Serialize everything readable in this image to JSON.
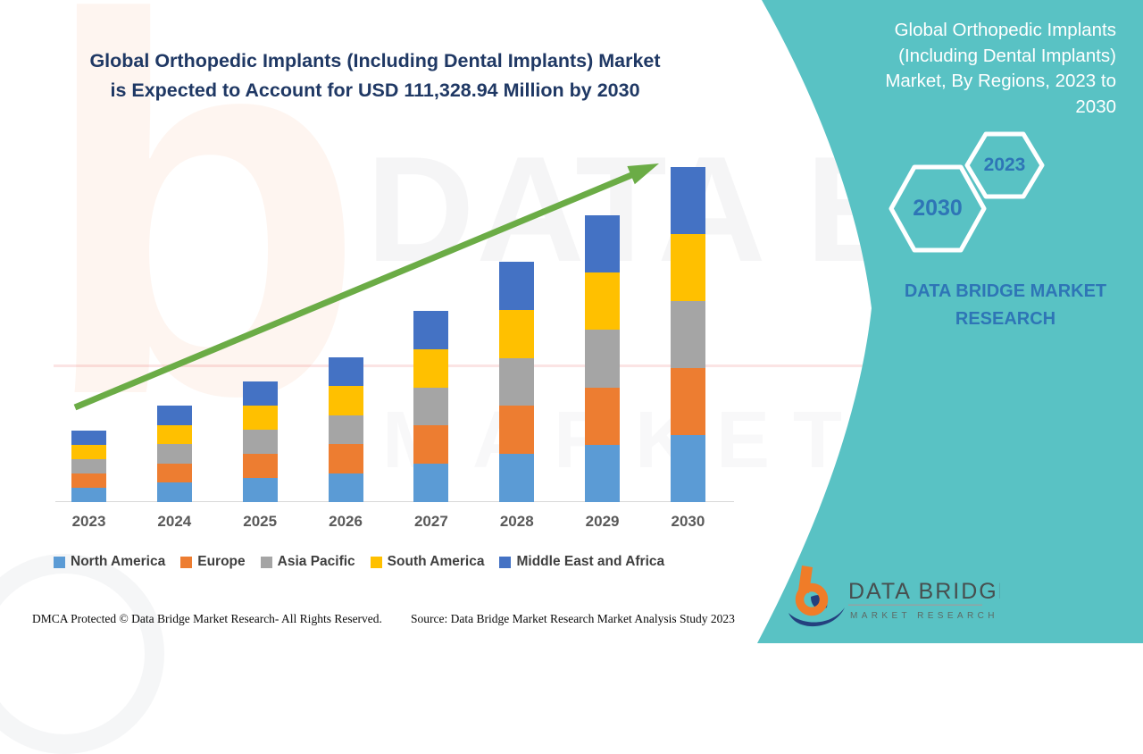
{
  "header": {
    "title_lines": [
      "Global Orthopedic Implants (Including Dental Implants) Market",
      "is Expected to Account for USD 111,328.94 Million by 2030"
    ],
    "title_color": "#1F3864"
  },
  "chart_data": {
    "type": "bar",
    "stacked": true,
    "title": "Global Orthopedic Implants (Including Dental Implants) Market is Expected to Account for USD 111,328.94 Million by 2030",
    "categories": [
      "2023",
      "2024",
      "2025",
      "2026",
      "2027",
      "2028",
      "2029",
      "2030"
    ],
    "series": [
      {
        "name": "North America",
        "color": "#5B9BD5",
        "values": [
          16,
          21.6,
          27,
          32.4,
          42.8,
          53.8,
          64.2,
          75
        ]
      },
      {
        "name": "Europe",
        "color": "#ED7D31",
        "values": [
          16,
          21.6,
          27,
          32.4,
          42.8,
          53.8,
          64.2,
          75
        ]
      },
      {
        "name": "Asia Pacific",
        "color": "#A5A5A5",
        "values": [
          16,
          21.6,
          27,
          32.4,
          42.8,
          53.8,
          64.2,
          75
        ]
      },
      {
        "name": "South America",
        "color": "#FFC000",
        "values": [
          16,
          21.6,
          27,
          32.4,
          42.8,
          53.8,
          64.2,
          75
        ]
      },
      {
        "name": "Middle East and Africa",
        "color": "#4472C4",
        "values": [
          16,
          21.6,
          27,
          32.4,
          42.8,
          53.8,
          64.2,
          75
        ]
      }
    ],
    "totals": [
      80,
      108,
      135,
      162,
      214,
      269,
      321,
      375
    ],
    "units": "relative bar height (no numeric value axis is shown in the figure)",
    "xlabel": "",
    "ylabel": "",
    "grid": false,
    "legend_position": "bottom",
    "trend_arrow_color": "#6BAC46"
  },
  "panel": {
    "background_color": "#59C2C4",
    "title_lines": [
      "Global Orthopedic Implants",
      "(Including Dental Implants)",
      "Market, By Regions, 2023 to",
      "2030"
    ],
    "hexagons": [
      {
        "label": "2030"
      },
      {
        "label": "2023"
      }
    ],
    "brand_text": "DATA BRIDGE MARKET RESEARCH",
    "accent_text_color": "#2E75B6"
  },
  "logo": {
    "name": "DATA BRIDGE",
    "subtitle": "MARKET RESEARCH",
    "orange": "#F07C28",
    "navy": "#24407E"
  },
  "watermark": {
    "big_letter": "b",
    "line1": "DATA BRIDGE",
    "line2": "MARKET RESEARCH"
  },
  "footer": {
    "dmca": "DMCA Protected © Data Bridge Market Research- All Rights Reserved.",
    "source": "Source: Data Bridge Market Research Market Analysis Study 2023"
  }
}
